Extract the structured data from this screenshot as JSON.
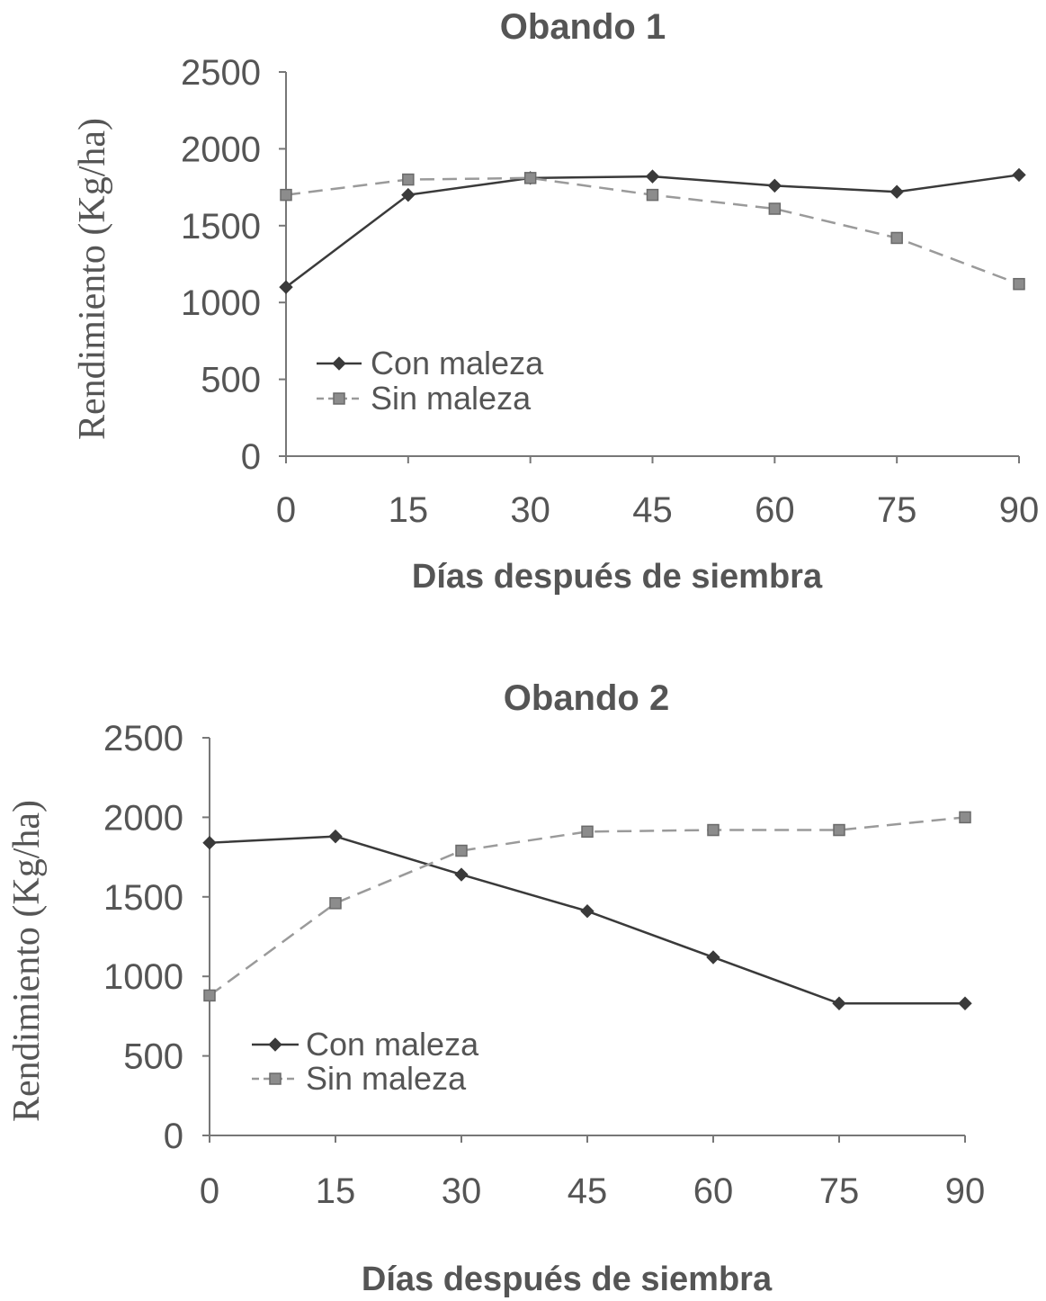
{
  "chart_data": [
    {
      "type": "line",
      "title": "Obando 1",
      "xlabel": "Días después de siembra",
      "ylabel": "Rendimiento (Kg/ha)",
      "x": [
        0,
        15,
        30,
        45,
        60,
        75,
        90
      ],
      "xticks": [
        "0",
        "15",
        "30",
        "45",
        "60",
        "75",
        "90"
      ],
      "yticks": [
        "0",
        "500",
        "1000",
        "1500",
        "2000",
        "2500"
      ],
      "xlim": [
        0,
        90
      ],
      "ylim": [
        0,
        2500
      ],
      "grid": false,
      "legend": "center-left",
      "series": [
        {
          "name": "Con maleza",
          "values": [
            1100,
            1700,
            1810,
            1820,
            1760,
            1720,
            1830
          ],
          "marker": "diamond",
          "line_style": "solid",
          "color": "#3a3a3a"
        },
        {
          "name": "Sin maleza",
          "values": [
            1700,
            1800,
            1810,
            1700,
            1610,
            1420,
            1120
          ],
          "marker": "square",
          "line_style": "dashed",
          "color": "#9a9a9a"
        }
      ]
    },
    {
      "type": "line",
      "title": "Obando 2",
      "xlabel": "Días después de siembra",
      "ylabel": "Rendimiento (Kg/ha)",
      "x": [
        0,
        15,
        30,
        45,
        60,
        75,
        90
      ],
      "xticks": [
        "0",
        "15",
        "30",
        "45",
        "60",
        "75",
        "90"
      ],
      "yticks": [
        "0",
        "500",
        "1000",
        "1500",
        "2000",
        "2500"
      ],
      "xlim": [
        0,
        90
      ],
      "ylim": [
        0,
        2500
      ],
      "grid": false,
      "legend": "center-left",
      "series": [
        {
          "name": "Con maleza",
          "values": [
            1840,
            1880,
            1640,
            1410,
            1120,
            830,
            830
          ],
          "marker": "diamond",
          "line_style": "solid",
          "color": "#3a3a3a"
        },
        {
          "name": "Sin maleza",
          "values": [
            880,
            1460,
            1790,
            1910,
            1920,
            1920,
            2000
          ],
          "marker": "square",
          "line_style": "dashed",
          "color": "#9a9a9a"
        }
      ]
    }
  ]
}
